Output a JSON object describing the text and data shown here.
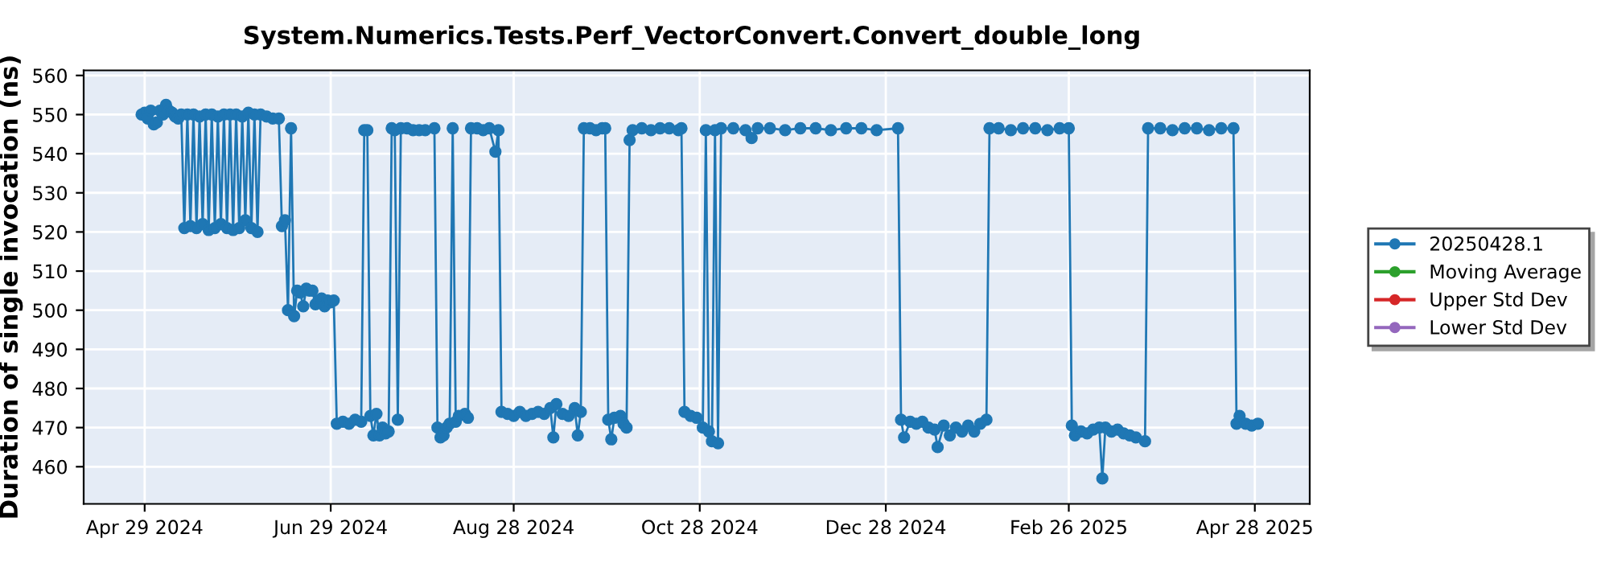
{
  "chart_data": {
    "type": "line",
    "title": "System.Numerics.Tests.Perf_VectorConvert.Convert_double_long",
    "ylabel": "Duration of single invocation (ns)",
    "x": [
      "2024-04-28",
      "2024-04-29",
      "2024-04-30",
      "2024-05-01",
      "2024-05-02",
      "2024-05-03",
      "2024-05-04",
      "2024-05-05",
      "2024-05-06",
      "2024-05-07",
      "2024-05-08",
      "2024-05-09",
      "2024-05-10",
      "2024-05-11",
      "2024-05-12",
      "2024-05-13",
      "2024-05-14",
      "2024-05-15",
      "2024-05-16",
      "2024-05-17",
      "2024-05-18",
      "2024-05-19",
      "2024-05-20",
      "2024-05-21",
      "2024-05-22",
      "2024-05-23",
      "2024-05-24",
      "2024-05-25",
      "2024-05-26",
      "2024-05-27",
      "2024-05-28",
      "2024-05-29",
      "2024-05-30",
      "2024-05-31",
      "2024-06-01",
      "2024-06-02",
      "2024-06-03",
      "2024-06-04",
      "2024-06-05",
      "2024-06-06",
      "2024-06-08",
      "2024-06-10",
      "2024-06-12",
      "2024-06-13",
      "2024-06-14",
      "2024-06-15",
      "2024-06-16",
      "2024-06-17",
      "2024-06-18",
      "2024-06-19",
      "2024-06-20",
      "2024-06-21",
      "2024-06-22",
      "2024-06-23",
      "2024-06-24",
      "2024-06-25",
      "2024-06-26",
      "2024-06-27",
      "2024-06-28",
      "2024-06-29",
      "2024-06-30",
      "2024-07-01",
      "2024-07-03",
      "2024-07-05",
      "2024-07-07",
      "2024-07-09",
      "2024-07-10",
      "2024-07-11",
      "2024-07-12",
      "2024-07-13",
      "2024-07-14",
      "2024-07-15",
      "2024-07-16",
      "2024-07-17",
      "2024-07-18",
      "2024-07-19",
      "2024-07-20",
      "2024-07-21",
      "2024-07-22",
      "2024-07-24",
      "2024-07-26",
      "2024-07-28",
      "2024-07-30",
      "2024-08-02",
      "2024-08-03",
      "2024-08-04",
      "2024-08-05",
      "2024-08-06",
      "2024-08-07",
      "2024-08-08",
      "2024-08-09",
      "2024-08-10",
      "2024-08-12",
      "2024-08-13",
      "2024-08-14",
      "2024-08-16",
      "2024-08-18",
      "2024-08-20",
      "2024-08-22",
      "2024-08-23",
      "2024-08-24",
      "2024-08-26",
      "2024-08-28",
      "2024-08-30",
      "2024-09-01",
      "2024-09-03",
      "2024-09-05",
      "2024-09-07",
      "2024-09-09",
      "2024-09-10",
      "2024-09-11",
      "2024-09-13",
      "2024-09-15",
      "2024-09-17",
      "2024-09-18",
      "2024-09-19",
      "2024-09-20",
      "2024-09-22",
      "2024-09-24",
      "2024-09-26",
      "2024-09-27",
      "2024-09-28",
      "2024-09-29",
      "2024-09-30",
      "2024-10-02",
      "2024-10-03",
      "2024-10-04",
      "2024-10-05",
      "2024-10-06",
      "2024-10-09",
      "2024-10-12",
      "2024-10-15",
      "2024-10-18",
      "2024-10-21",
      "2024-10-22",
      "2024-10-23",
      "2024-10-25",
      "2024-10-27",
      "2024-10-29",
      "2024-10-30",
      "2024-10-31",
      "2024-11-01",
      "2024-11-02",
      "2024-11-03",
      "2024-11-04",
      "2024-11-08",
      "2024-11-12",
      "2024-11-14",
      "2024-11-16",
      "2024-11-20",
      "2024-11-25",
      "2024-11-30",
      "2024-12-05",
      "2024-12-10",
      "2024-12-15",
      "2024-12-20",
      "2024-12-25",
      "2025-01-01",
      "2025-01-02",
      "2025-01-03",
      "2025-01-05",
      "2025-01-07",
      "2025-01-09",
      "2025-01-11",
      "2025-01-13",
      "2025-01-14",
      "2025-01-16",
      "2025-01-18",
      "2025-01-20",
      "2025-01-22",
      "2025-01-24",
      "2025-01-26",
      "2025-01-28",
      "2025-01-30",
      "2025-01-31",
      "2025-02-03",
      "2025-02-07",
      "2025-02-11",
      "2025-02-15",
      "2025-02-19",
      "2025-02-23",
      "2025-02-26",
      "2025-02-27",
      "2025-02-28",
      "2025-03-02",
      "2025-03-04",
      "2025-03-06",
      "2025-03-08",
      "2025-03-09",
      "2025-03-10",
      "2025-03-12",
      "2025-03-14",
      "2025-03-16",
      "2025-03-18",
      "2025-03-20",
      "2025-03-23",
      "2025-03-24",
      "2025-03-28",
      "2025-04-01",
      "2025-04-05",
      "2025-04-09",
      "2025-04-13",
      "2025-04-17",
      "2025-04-21",
      "2025-04-22",
      "2025-04-23",
      "2025-04-25",
      "2025-04-27",
      "2025-04-29"
    ],
    "series": [
      {
        "name": "20250428.1",
        "color": "#1f77b4",
        "values": [
          550,
          550.5,
          549,
          551,
          547.5,
          548,
          551,
          550,
          552.5,
          551,
          550.5,
          549.5,
          549,
          550,
          521,
          550,
          521.5,
          550,
          521,
          549.5,
          522,
          550,
          520.5,
          550,
          521,
          549.5,
          522,
          550,
          521,
          550,
          520.5,
          550,
          521,
          549.5,
          523,
          550.5,
          521,
          550,
          520,
          550,
          549.5,
          549,
          549,
          521.5,
          523,
          500,
          546.5,
          498.5,
          505,
          504.5,
          501,
          505.5,
          505,
          505,
          501.5,
          502.5,
          503,
          501,
          502.5,
          502,
          502.5,
          471,
          471.5,
          471,
          472,
          471.5,
          546,
          546,
          473,
          468,
          473.5,
          468,
          470,
          468.5,
          469,
          546.5,
          546,
          472,
          546.5,
          546.5,
          546,
          546,
          546,
          546.5,
          470,
          467.5,
          468,
          470,
          471,
          546.5,
          471.5,
          473,
          473.5,
          472.5,
          546.5,
          546.5,
          546,
          546.5,
          540.5,
          546,
          474,
          473.5,
          473,
          474,
          473,
          473.5,
          474,
          473.5,
          475,
          467.5,
          476,
          473.5,
          473,
          475,
          468,
          474,
          546.5,
          546.5,
          546,
          546.5,
          546.5,
          472,
          467,
          472.5,
          473,
          471,
          470,
          543.5,
          546,
          546.5,
          546,
          546.5,
          546.5,
          546,
          546.5,
          474,
          473,
          472.5,
          470,
          546,
          469,
          466.5,
          546,
          466,
          546.5,
          546.5,
          546,
          544,
          546.5,
          546.5,
          546,
          546.5,
          546.5,
          546,
          546.5,
          546.5,
          546,
          546.5,
          472,
          467.5,
          471.5,
          471,
          471.5,
          470,
          469.5,
          465,
          470.5,
          468,
          470,
          469,
          470.5,
          469,
          471,
          472,
          546.5,
          546.5,
          546,
          546.5,
          546.5,
          546,
          546.5,
          546.5,
          470.5,
          468,
          469,
          468.5,
          469.5,
          470,
          457,
          470,
          469,
          469.5,
          468.5,
          468,
          467.5,
          466.5,
          546.5,
          546.5,
          546,
          546.5,
          546.5,
          546,
          546.5,
          546.5,
          471,
          473,
          471,
          470.5,
          471
        ]
      },
      {
        "name": "Moving Average",
        "color": "#2ca02c",
        "values": [
          null,
          null,
          null,
          null,
          null,
          null,
          null,
          null,
          null,
          null,
          null,
          null,
          null,
          null,
          null,
          null,
          null,
          null,
          null,
          null,
          null,
          null,
          null,
          null,
          null,
          null,
          null,
          null,
          null,
          null,
          null,
          null,
          null,
          null,
          null,
          null,
          null,
          null,
          null,
          null,
          null,
          null,
          null,
          null,
          null,
          null,
          null,
          null,
          null,
          null,
          null,
          null,
          null,
          null,
          null,
          null,
          null,
          null,
          null,
          null,
          null,
          null,
          null,
          null,
          null,
          null,
          null,
          null,
          null,
          null,
          null,
          null,
          null,
          null,
          null,
          null,
          null,
          null,
          null,
          null,
          null,
          null,
          null,
          null,
          null,
          null,
          null,
          null,
          null,
          null,
          null,
          null,
          null,
          null,
          null,
          null,
          null,
          null,
          null,
          null,
          null,
          null,
          null,
          null,
          null,
          null,
          null,
          null,
          null,
          null,
          null,
          null,
          null,
          null,
          null,
          null,
          null,
          null,
          null,
          null,
          null,
          null,
          null,
          null,
          null,
          null,
          null,
          null,
          null,
          null,
          null,
          null,
          null,
          null,
          null,
          null,
          null,
          null,
          null,
          null,
          null,
          null,
          null,
          null,
          null,
          null,
          null,
          null,
          null,
          null,
          null,
          null,
          null,
          null,
          null,
          null,
          null,
          null,
          null,
          null,
          null,
          null,
          null,
          null,
          null,
          null,
          null,
          null,
          null,
          null,
          null,
          null,
          null,
          null,
          null,
          null,
          null,
          null,
          null,
          null,
          null,
          null,
          null,
          null,
          null,
          null,
          null,
          null,
          null,
          null,
          null,
          null,
          null,
          null,
          null,
          null,
          null,
          null,
          null,
          null,
          null,
          null,
          null,
          null,
          null,
          null,
          null,
          null,
          null
        ]
      },
      {
        "name": "Upper Std Dev",
        "color": "#d62728",
        "values": [
          null,
          null,
          null,
          null,
          null,
          null,
          null,
          null,
          null,
          null,
          null,
          null,
          null,
          null,
          null,
          null,
          null,
          null,
          null,
          null,
          null,
          null,
          null,
          null,
          null,
          null,
          null,
          null,
          null,
          null,
          null,
          null,
          null,
          null,
          null,
          null,
          null,
          null,
          null,
          null,
          null,
          null,
          null,
          null,
          null,
          null,
          null,
          null,
          null,
          null,
          null,
          null,
          null,
          null,
          null,
          null,
          null,
          null,
          null,
          null,
          null,
          null,
          null,
          null,
          null,
          null,
          null,
          null,
          null,
          null,
          null,
          null,
          null,
          null,
          null,
          null,
          null,
          null,
          null,
          null,
          null,
          null,
          null,
          null,
          null,
          null,
          null,
          null,
          null,
          null,
          null,
          null,
          null,
          null,
          null,
          null,
          null,
          null,
          null,
          null,
          null,
          null,
          null,
          null,
          null,
          null,
          null,
          null,
          null,
          null,
          null,
          null,
          null,
          null,
          null,
          null,
          null,
          null,
          null,
          null,
          null,
          null,
          null,
          null,
          null,
          null,
          null,
          null,
          null,
          null,
          null,
          null,
          null,
          null,
          null,
          null,
          null,
          null,
          null,
          null,
          null,
          null,
          null,
          null,
          null,
          null,
          null,
          null,
          null,
          null,
          null,
          null,
          null,
          null,
          null,
          null,
          null,
          null,
          null,
          null,
          null,
          null,
          null,
          null,
          null,
          null,
          null,
          null,
          null,
          null,
          null,
          null,
          null,
          null,
          null,
          null,
          null,
          null,
          null,
          null,
          null,
          null,
          null,
          null,
          null,
          null,
          null,
          null,
          null,
          null,
          null,
          null,
          null,
          null,
          null,
          null,
          null,
          null,
          null,
          null,
          null,
          null,
          null,
          null,
          null,
          null,
          null,
          null,
          null
        ]
      },
      {
        "name": "Lower Std Dev",
        "color": "#9467bd",
        "values": [
          null,
          null,
          null,
          null,
          null,
          null,
          null,
          null,
          null,
          null,
          null,
          null,
          null,
          null,
          null,
          null,
          null,
          null,
          null,
          null,
          null,
          null,
          null,
          null,
          null,
          null,
          null,
          null,
          null,
          null,
          null,
          null,
          null,
          null,
          null,
          null,
          null,
          null,
          null,
          null,
          null,
          null,
          null,
          null,
          null,
          null,
          null,
          null,
          null,
          null,
          null,
          null,
          null,
          null,
          null,
          null,
          null,
          null,
          null,
          null,
          null,
          null,
          null,
          null,
          null,
          null,
          null,
          null,
          null,
          null,
          null,
          null,
          null,
          null,
          null,
          null,
          null,
          null,
          null,
          null,
          null,
          null,
          null,
          null,
          null,
          null,
          null,
          null,
          null,
          null,
          null,
          null,
          null,
          null,
          null,
          null,
          null,
          null,
          null,
          null,
          null,
          null,
          null,
          null,
          null,
          null,
          null,
          null,
          null,
          null,
          null,
          null,
          null,
          null,
          null,
          null,
          null,
          null,
          null,
          null,
          null,
          null,
          null,
          null,
          null,
          null,
          null,
          null,
          null,
          null,
          null,
          null,
          null,
          null,
          null,
          null,
          null,
          null,
          null,
          null,
          null,
          null,
          null,
          null,
          null,
          null,
          null,
          null,
          null,
          null,
          null,
          null,
          null,
          null,
          null,
          null,
          null,
          null,
          null,
          null,
          null,
          null,
          null,
          null,
          null,
          null,
          null,
          null,
          null,
          null,
          null,
          null,
          null,
          null,
          null,
          null,
          null,
          null,
          null,
          null,
          null,
          null,
          null,
          null,
          null,
          null,
          null,
          null,
          null,
          null,
          null,
          null,
          null,
          null,
          null,
          null,
          null,
          null,
          null,
          null,
          null,
          null,
          null,
          null,
          null,
          null,
          null,
          null,
          null
        ]
      }
    ],
    "xlim": [
      "2024-04-09",
      "2025-05-16"
    ],
    "xticks": [
      {
        "value": "2024-04-29",
        "label": "Apr 29 2024"
      },
      {
        "value": "2024-06-29",
        "label": "Jun 29 2024"
      },
      {
        "value": "2024-08-28",
        "label": "Aug 28 2024"
      },
      {
        "value": "2024-10-28",
        "label": "Oct 28 2024"
      },
      {
        "value": "2024-12-28",
        "label": "Dec 28 2024"
      },
      {
        "value": "2025-02-26",
        "label": "Feb 26 2025"
      },
      {
        "value": "2025-04-28",
        "label": "Apr 28 2025"
      }
    ],
    "ylim": [
      450.5,
      561.3
    ],
    "yticks": [
      460,
      470,
      480,
      490,
      500,
      510,
      520,
      530,
      540,
      550,
      560
    ],
    "grid": true,
    "legend": "right",
    "marker": "circle",
    "line_style": "solid"
  }
}
